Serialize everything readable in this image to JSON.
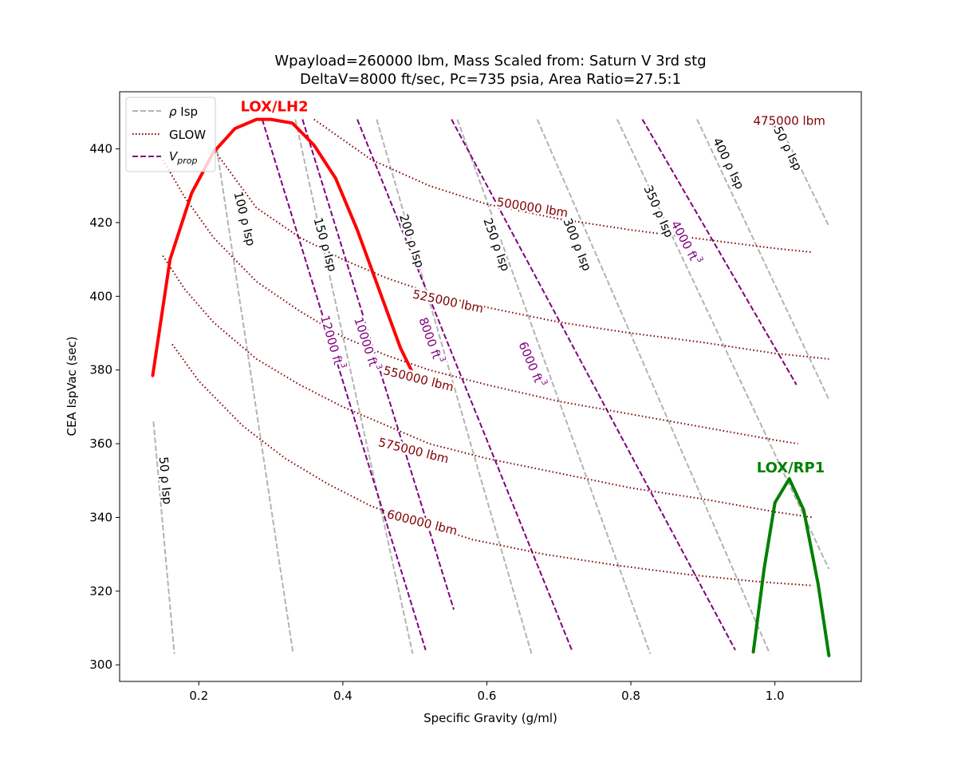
{
  "chart_data": {
    "type": "line",
    "title_line1": "Wpayload=260000 lbm, Mass Scaled from: Saturn V 3rd stg",
    "title_line2": "DeltaV=8000 ft/sec, Pc=735 psia, Area Ratio=27.5:1",
    "xlabel": "Specific Gravity (g/ml)",
    "ylabel": "CEA IspVac (sec)",
    "xlim": [
      0.09,
      1.12
    ],
    "ylim": [
      295.5,
      455.5
    ],
    "xticks": [
      0.2,
      0.4,
      0.6,
      0.8,
      1.0
    ],
    "xtick_labels": [
      "0.2",
      "0.4",
      "0.6",
      "0.8",
      "1.0"
    ],
    "yticks": [
      300,
      320,
      340,
      360,
      380,
      400,
      420,
      440
    ],
    "ytick_labels": [
      "300",
      "320",
      "340",
      "360",
      "380",
      "400",
      "420",
      "440"
    ],
    "grid": false,
    "legend_position": "top-left",
    "legend": [
      {
        "label": "ρ Isp",
        "style": "dashed",
        "color": "#b3b3b3"
      },
      {
        "label": "GLOW",
        "style": "dotted",
        "color": "#800000"
      },
      {
        "label": "V",
        "sub": "prop",
        "style": "dashed",
        "color": "#800080"
      }
    ],
    "rho_isp_series": [
      {
        "label": "50 ρ Isp",
        "value": 50,
        "x": [
          0.137,
          0.166
        ],
        "y": [
          366,
          303
        ],
        "label_at": [
          0.153,
          350
        ],
        "label_rot": 85
      },
      {
        "label": "100 ρ Isp",
        "value": 100,
        "x": [
          0.225,
          0.331
        ],
        "y": [
          440,
          303
        ],
        "label_at": [
          0.263,
          421
        ],
        "label_rot": 76
      },
      {
        "label": "150 ρ Isp",
        "value": 150,
        "x": [
          0.334,
          0.497
        ],
        "y": [
          448,
          303
        ],
        "label_at": [
          0.375,
          414
        ],
        "label_rot": 74
      },
      {
        "label": "200 ρ Isp",
        "value": 200,
        "x": [
          0.447,
          0.662
        ],
        "y": [
          448,
          303
        ],
        "label_at": [
          0.495,
          415
        ],
        "label_rot": 72
      },
      {
        "label": "250 ρ Isp",
        "value": 250,
        "x": [
          0.559,
          0.827
        ],
        "y": [
          448,
          303
        ],
        "label_at": [
          0.613,
          414
        ],
        "label_rot": 70
      },
      {
        "label": "300 ρ Isp",
        "value": 300,
        "x": [
          0.67,
          0.993
        ],
        "y": [
          448,
          303
        ],
        "label_at": [
          0.725,
          414
        ],
        "label_rot": 68
      },
      {
        "label": "350 ρ Isp",
        "value": 350,
        "x": [
          0.781,
          1.075
        ],
        "y": [
          448,
          326
        ],
        "label_at": [
          0.838,
          423
        ],
        "label_rot": 66
      },
      {
        "label": "400 ρ Isp",
        "value": 400,
        "x": [
          0.892,
          1.075
        ],
        "y": [
          448,
          372
        ],
        "label_at": [
          0.935,
          436
        ],
        "label_rot": 64
      },
      {
        "label": "450 ρ Isp",
        "value": 450,
        "x": [
          1.003,
          1.075
        ],
        "y": [
          448,
          419
        ],
        "label_at": [
          1.015,
          441
        ],
        "label_rot": 63
      }
    ],
    "glow_series": [
      {
        "label": "475000 lbm",
        "value": 475000,
        "x": [],
        "y": [],
        "label_at": [
          1.02,
          447.5
        ],
        "label_rot": 0
      },
      {
        "label": "500000 lbm",
        "value": 500000,
        "x": [
          0.36,
          0.44,
          0.52,
          0.6,
          0.7,
          0.8,
          0.9,
          1.0,
          1.05
        ],
        "y": [
          448,
          437,
          430,
          425,
          421,
          418,
          415.5,
          413,
          412
        ],
        "label_at": [
          0.663,
          424
        ],
        "label_rot": 9
      },
      {
        "label": "525000 lbm",
        "value": 525000,
        "x": [
          0.22,
          0.28,
          0.34,
          0.4,
          0.46,
          0.52,
          0.6,
          0.7,
          0.8,
          0.9,
          1.0,
          1.075
        ],
        "y": [
          440,
          424,
          416,
          410,
          405,
          401,
          397,
          393,
          390,
          387.5,
          384.5,
          383
        ],
        "label_at": [
          0.546,
          398.5
        ],
        "label_rot": 12
      },
      {
        "label": "550000 lbm",
        "value": 550000,
        "x": [
          0.15,
          0.18,
          0.22,
          0.28,
          0.34,
          0.4,
          0.46,
          0.52,
          0.6,
          0.7,
          0.8,
          0.9,
          1.0,
          1.032
        ],
        "y": [
          437,
          427,
          416,
          404,
          396,
          389,
          384,
          380,
          376,
          371.5,
          368,
          364.5,
          361,
          360
        ],
        "label_at": [
          0.505,
          377.5
        ],
        "label_rot": 14
      },
      {
        "label": "575000 lbm",
        "value": 575000,
        "x": [
          0.15,
          0.18,
          0.22,
          0.28,
          0.34,
          0.4,
          0.46,
          0.52,
          0.6,
          0.7,
          0.8,
          0.9,
          1.0,
          1.053
        ],
        "y": [
          411,
          402,
          393,
          383,
          376,
          370,
          365,
          360,
          356,
          352,
          348,
          345,
          341.5,
          340
        ],
        "label_at": [
          0.498,
          358
        ],
        "label_rot": 14
      },
      {
        "label": "600000 lbm",
        "value": 600000,
        "x": [
          0.163,
          0.2,
          0.26,
          0.32,
          0.38,
          0.44,
          0.5,
          0.58,
          0.68,
          0.78,
          0.88,
          0.98,
          1.053
        ],
        "y": [
          387,
          377,
          365,
          356,
          349,
          343,
          339,
          334,
          330,
          327,
          324.5,
          322.5,
          321.5
        ],
        "label_at": [
          0.51,
          338.5
        ],
        "label_rot": 14
      }
    ],
    "vprop_series": [
      {
        "label": "12000 ft",
        "sup": "3",
        "value": 12000,
        "x": [
          0.288,
          0.515
        ],
        "y": [
          448,
          304
        ],
        "label_at": [
          0.385,
          387.5
        ],
        "label_rot": 74
      },
      {
        "label": "10000 ft",
        "sup": "3",
        "value": 10000,
        "x": [
          0.344,
          0.554
        ],
        "y": [
          448,
          315
        ],
        "label_at": [
          0.433,
          387
        ],
        "label_rot": 72
      },
      {
        "label": "8000 ft",
        "sup": "3",
        "value": 8000,
        "x": [
          0.42,
          0.718
        ],
        "y": [
          448,
          304
        ],
        "label_at": [
          0.522,
          388
        ],
        "label_rot": 70
      },
      {
        "label": "6000 ft",
        "sup": "3",
        "value": 6000,
        "x": [
          0.551,
          0.945
        ],
        "y": [
          448,
          304
        ],
        "label_at": [
          0.662,
          381.5
        ],
        "label_rot": 67
      },
      {
        "label": "4000 ft",
        "sup": "3",
        "value": 4000,
        "x": [
          0.816,
          1.03
        ],
        "y": [
          448,
          376
        ],
        "label_at": [
          0.876,
          414.5
        ],
        "label_rot": 62
      }
    ],
    "propellants": [
      {
        "name": "LOX/LH2",
        "color": "#ff0000",
        "x": [
          0.136,
          0.16,
          0.19,
          0.22,
          0.25,
          0.28,
          0.3,
          0.33,
          0.36,
          0.39,
          0.42,
          0.45,
          0.48,
          0.495
        ],
        "y": [
          378.5,
          410,
          428,
          439,
          445.5,
          448,
          448,
          447,
          441,
          432,
          418,
          402,
          386,
          380
        ],
        "label_at": [
          0.305,
          448.5
        ]
      },
      {
        "name": "LOX/RP1",
        "color": "#008000",
        "x": [
          0.97,
          0.985,
          1.0,
          1.02,
          1.04,
          1.06,
          1.075
        ],
        "y": [
          303.5,
          326,
          344,
          350.5,
          342,
          322,
          302.5
        ],
        "label_at": [
          1.022,
          350.5
        ]
      }
    ],
    "colors": {
      "rho_isp": "#b3b3b3",
      "glow": "#800000",
      "vprop": "#800080"
    }
  }
}
